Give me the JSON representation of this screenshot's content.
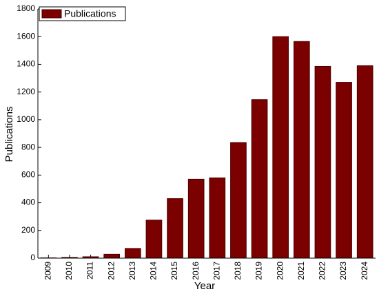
{
  "chart_data": {
    "type": "bar",
    "x_label": "Year",
    "y_label": "Publications",
    "categories": [
      "2009",
      "2010",
      "2011",
      "2012",
      "2013",
      "2014",
      "2015",
      "2016",
      "2017",
      "2018",
      "2019",
      "2020",
      "2021",
      "2022",
      "2023",
      "2024"
    ],
    "series": [
      {
        "name": "Publications",
        "color": "#7b0000",
        "values": [
          2,
          5,
          10,
          28,
          70,
          275,
          430,
          570,
          580,
          835,
          1145,
          1600,
          1565,
          1385,
          1270,
          1390
        ]
      }
    ],
    "ylim": [
      0,
      1800
    ],
    "yticks": [
      0,
      200,
      400,
      600,
      800,
      1000,
      1200,
      1400,
      1600,
      1800
    ],
    "grid": false,
    "legend_position": "upper-left"
  }
}
